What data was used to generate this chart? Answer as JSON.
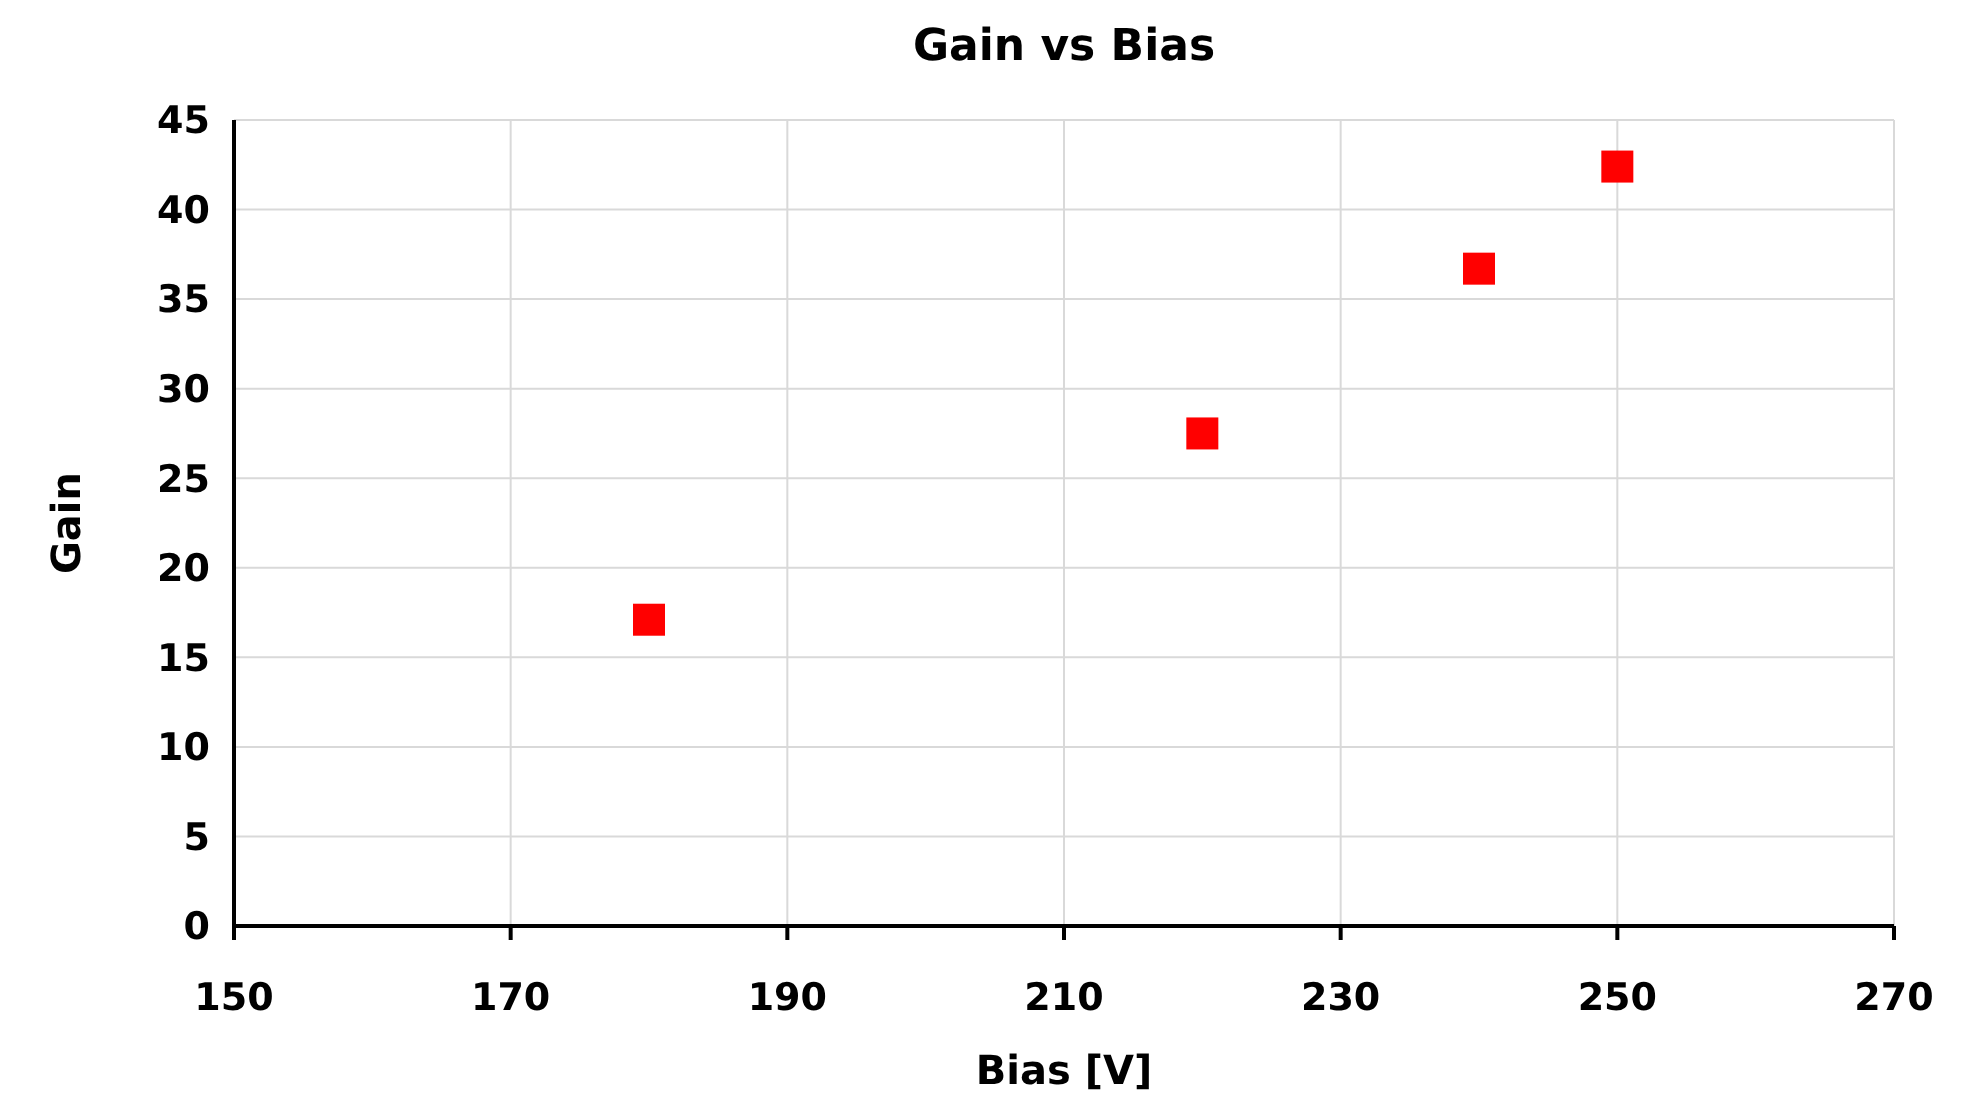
{
  "chart_data": {
    "type": "scatter",
    "title": "Gain vs Bias",
    "xlabel": "Bias [V]",
    "ylabel": "Gain",
    "x": [
      180,
      220,
      240,
      250
    ],
    "series": [
      {
        "color": "#ff0000",
        "values": [
          17.1,
          27.5,
          36.7,
          42.4
        ]
      }
    ],
    "xlim": [
      150,
      270
    ],
    "xticks": [
      150,
      170,
      190,
      210,
      230,
      250,
      270
    ],
    "ylim": [
      0,
      45
    ],
    "yticks": [
      0,
      5,
      10,
      15,
      20,
      25,
      30,
      35,
      40,
      45
    ],
    "grid": true,
    "marker": "square"
  }
}
